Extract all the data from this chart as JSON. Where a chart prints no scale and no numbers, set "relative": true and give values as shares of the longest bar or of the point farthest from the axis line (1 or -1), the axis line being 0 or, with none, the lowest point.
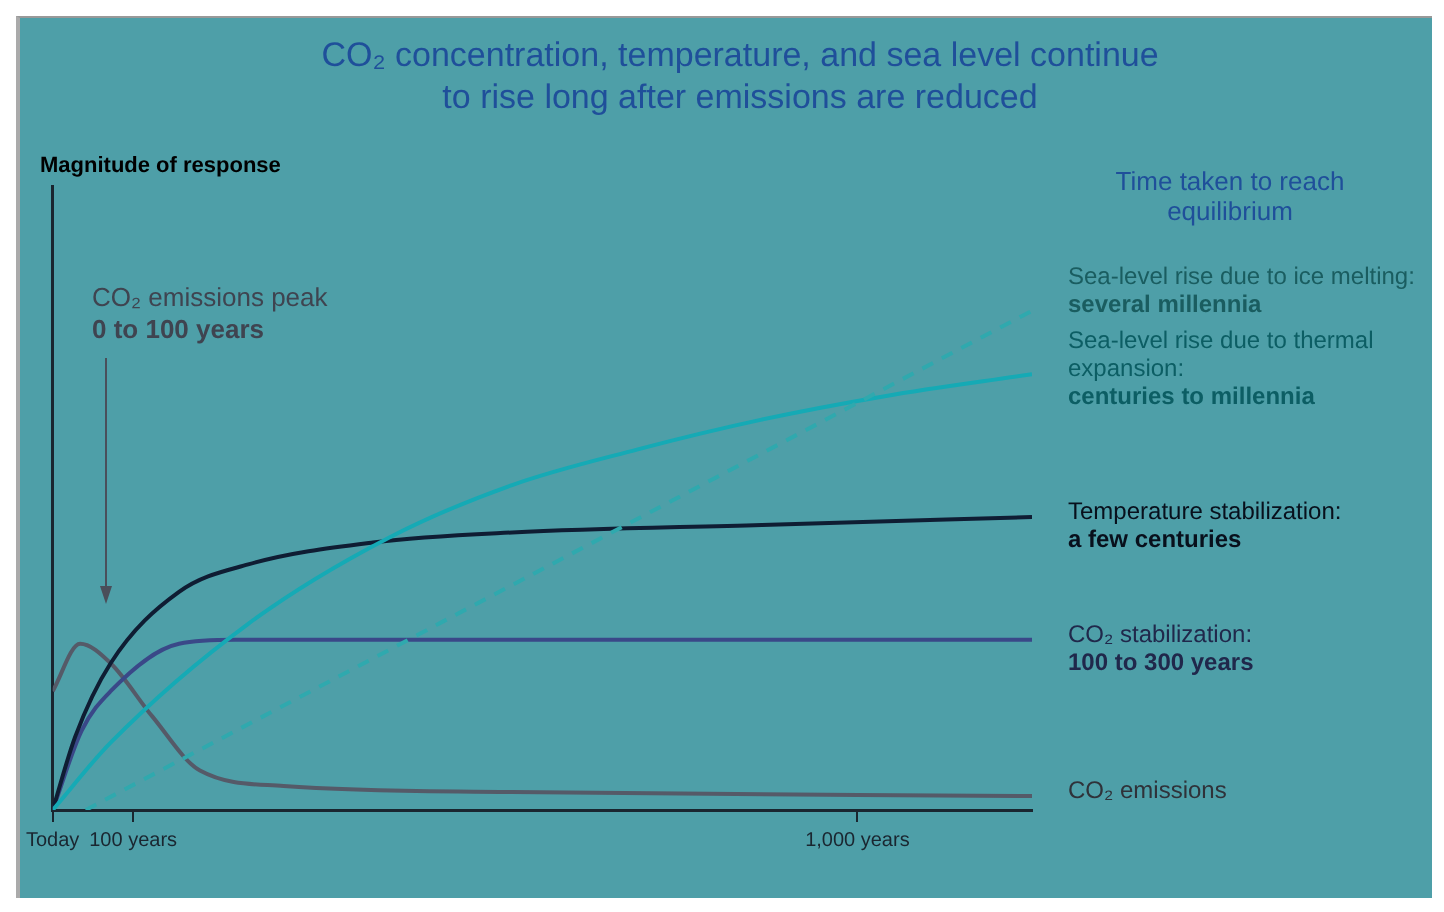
{
  "chart_data": {
    "type": "line",
    "title": "CO₂ concentration, temperature, and sea level continue to rise long after emissions are reduced",
    "legend_title": "Time taken to reach equilibrium",
    "relative": true,
    "xlim": [
      0,
      1217
    ],
    "xticks": [
      {
        "value": 0,
        "label": "Today"
      },
      {
        "value": 100,
        "label": "100 years"
      },
      {
        "value": 1000,
        "label": "1,000 years"
      }
    ],
    "grid": false,
    "legend": false,
    "marker": "none",
    "series": [
      {
        "name": "Sea-level rise due to ice melting:",
        "color": "#2fa9ae",
        "line_style": "dashed",
        "x": [
          41,
          1217
        ],
        "values": [
          0,
          1
        ]
      },
      {
        "name": "Sea-level rise due to thermal expansion:",
        "color": "#15aab5",
        "x": [
          0,
          72,
          243,
          416,
          571,
          726,
          881,
          1034,
          1217
        ],
        "values": [
          0,
          0.135,
          0.373,
          0.544,
          0.651,
          0.722,
          0.782,
          0.829,
          0.873
        ]
      },
      {
        "name": "Temperature stabilization:",
        "color": "#0f1d33",
        "x": [
          0,
          28,
          72,
          157,
          243,
          398,
          571,
          881,
          1217
        ],
        "values": [
          0,
          0.147,
          0.294,
          0.437,
          0.492,
          0.536,
          0.556,
          0.571,
          0.587
        ]
      },
      {
        "name": "CO₂ stabilization:",
        "color": "#3a4888",
        "x": [
          0,
          36,
          72,
          157,
          227,
          1217
        ],
        "values": [
          0,
          0.159,
          0.238,
          0.333,
          0.341,
          0.341
        ]
      },
      {
        "name": "CO₂ emissions",
        "color": "#555a68",
        "x": [
          0,
          34,
          72,
          124,
          183,
          287,
          571,
          1217
        ],
        "values": [
          0.238,
          0.333,
          0.294,
          0.187,
          0.079,
          0.048,
          0.036,
          0.028
        ]
      }
    ],
    "annotations": [
      "Magnitude of response",
      "CO₂ emissions peak",
      "0 to 100 years",
      "several millennia",
      "centuries to millennia",
      "a few centuries",
      "100 to 300 years"
    ]
  }
}
